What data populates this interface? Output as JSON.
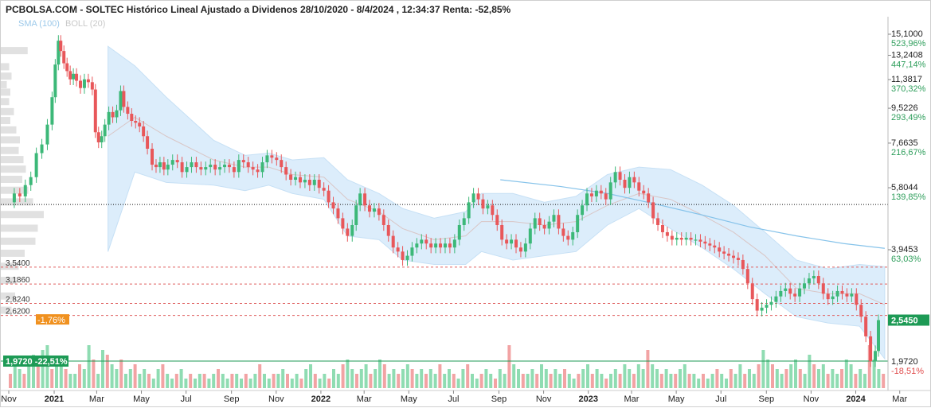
{
  "header": {
    "title": "PCBOLSA.COM - SOLTEC Histórico Lineal Ajustado a Dividenos 28/10/2020 - 8/4/2024 , 12:34:37 Renta: -52,85%",
    "legend_sma": "SMA (100)",
    "legend_boll": "BOLL (20)"
  },
  "colors": {
    "up": "#3cb878",
    "down": "#e8575a",
    "band_fill": "#dcedfb",
    "band_line": "#c6e0f5",
    "sma": "#86c3ea",
    "ma20": "#d9c6c6",
    "vol_up": "#8fdcb2",
    "vol_down": "#f2a3a4",
    "profile": "#d9d9d9",
    "positive_label": "#2e9e5b",
    "negative_label": "#e04b4b",
    "badge_orange": "#f0911f",
    "badge_green": "#1d9a55"
  },
  "chart_data": {
    "type": "candlestick",
    "scale": "log",
    "y_ticks": [
      {
        "price": "15,1000",
        "pct": "523,96%",
        "value": 15.1
      },
      {
        "price": "13,2408",
        "pct": "447,14%",
        "value": 13.2408
      },
      {
        "price": "11,3817",
        "pct": "370,32%",
        "value": 11.3817
      },
      {
        "price": "9,5226",
        "pct": "293,49%",
        "value": 9.5226
      },
      {
        "price": "7,6635",
        "pct": "216,67%",
        "value": 7.6635
      },
      {
        "price": "5,8044",
        "pct": "139,85%",
        "value": 5.8044
      },
      {
        "price": "3,9453",
        "pct": "63,03%",
        "value": 3.9453
      }
    ],
    "x_ticks": [
      {
        "label": "Nov",
        "bold": false,
        "t": 0
      },
      {
        "label": "2021",
        "bold": true,
        "t": 62
      },
      {
        "label": "Mar",
        "bold": false,
        "t": 120
      },
      {
        "label": "May",
        "bold": false,
        "t": 181
      },
      {
        "label": "Jul",
        "bold": false,
        "t": 242
      },
      {
        "label": "Sep",
        "bold": false,
        "t": 304
      },
      {
        "label": "Nov",
        "bold": false,
        "t": 365
      },
      {
        "label": "2022",
        "bold": true,
        "t": 426
      },
      {
        "label": "Mar",
        "bold": false,
        "t": 485
      },
      {
        "label": "May",
        "bold": false,
        "t": 546
      },
      {
        "label": "Jul",
        "bold": false,
        "t": 607
      },
      {
        "label": "Sep",
        "bold": false,
        "t": 669
      },
      {
        "label": "Nov",
        "bold": false,
        "t": 730
      },
      {
        "label": "2023",
        "bold": true,
        "t": 791
      },
      {
        "label": "Mar",
        "bold": false,
        "t": 850
      },
      {
        "label": "May",
        "bold": false,
        "t": 911
      },
      {
        "label": "Jul",
        "bold": false,
        "t": 972
      },
      {
        "label": "Sep",
        "bold": false,
        "t": 1034
      },
      {
        "label": "Nov",
        "bold": false,
        "t": 1095
      },
      {
        "label": "2024",
        "bold": true,
        "t": 1156
      },
      {
        "label": "Mar",
        "bold": false,
        "t": 1216
      }
    ],
    "levels": [
      {
        "label": "3,5400",
        "value": 3.54
      },
      {
        "label": "3,1860",
        "value": 3.186
      },
      {
        "label": "2,8240",
        "value": 2.824
      },
      {
        "label": "2,6200",
        "value": 2.62
      }
    ],
    "left_markers": {
      "orange": "-1,76%",
      "green_price": "1,9720",
      "green_pct": "-22,51%"
    },
    "right_markers": {
      "last": "2,5450",
      "low": "1,9720",
      "low_pct": "-18,51%"
    },
    "reference_price": 5.23,
    "closes": [
      {
        "t": 0,
        "v": 5.3
      },
      {
        "t": 7,
        "v": 5.6
      },
      {
        "t": 14,
        "v": 5.5
      },
      {
        "t": 21,
        "v": 5.9
      },
      {
        "t": 28,
        "v": 6.2
      },
      {
        "t": 35,
        "v": 7.2
      },
      {
        "t": 42,
        "v": 7.6
      },
      {
        "t": 49,
        "v": 8.6
      },
      {
        "t": 55,
        "v": 10.2
      },
      {
        "t": 59,
        "v": 12.5
      },
      {
        "t": 63,
        "v": 14.5
      },
      {
        "t": 66,
        "v": 13.6
      },
      {
        "t": 70,
        "v": 12.6
      },
      {
        "t": 74,
        "v": 12.0
      },
      {
        "t": 78,
        "v": 11.4
      },
      {
        "t": 82,
        "v": 11.8
      },
      {
        "t": 86,
        "v": 11.3
      },
      {
        "t": 91,
        "v": 10.8
      },
      {
        "t": 96,
        "v": 11.4
      },
      {
        "t": 101,
        "v": 11.2
      },
      {
        "t": 106,
        "v": 10.7
      },
      {
        "t": 110,
        "v": 8.2
      },
      {
        "t": 114,
        "v": 7.7
      },
      {
        "t": 118,
        "v": 8.0
      },
      {
        "t": 122,
        "v": 8.6
      },
      {
        "t": 127,
        "v": 9.3
      },
      {
        "t": 132,
        "v": 9.0
      },
      {
        "t": 137,
        "v": 9.4
      },
      {
        "t": 142,
        "v": 10.6
      },
      {
        "t": 146,
        "v": 9.6
      },
      {
        "t": 151,
        "v": 9.2
      },
      {
        "t": 156,
        "v": 8.8
      },
      {
        "t": 161,
        "v": 8.7
      },
      {
        "t": 166,
        "v": 8.5
      },
      {
        "t": 171,
        "v": 8.0
      },
      {
        "t": 176,
        "v": 7.4
      },
      {
        "t": 182,
        "v": 6.7
      },
      {
        "t": 187,
        "v": 6.6
      },
      {
        "t": 192,
        "v": 6.8
      },
      {
        "t": 197,
        "v": 6.5
      },
      {
        "t": 202,
        "v": 6.7
      },
      {
        "t": 208,
        "v": 6.9
      },
      {
        "t": 214,
        "v": 6.8
      },
      {
        "t": 220,
        "v": 6.4
      },
      {
        "t": 226,
        "v": 6.6
      },
      {
        "t": 232,
        "v": 6.8
      },
      {
        "t": 238,
        "v": 6.6
      },
      {
        "t": 244,
        "v": 6.5
      },
      {
        "t": 250,
        "v": 6.6
      },
      {
        "t": 256,
        "v": 6.7
      },
      {
        "t": 262,
        "v": 6.5
      },
      {
        "t": 268,
        "v": 6.6
      },
      {
        "t": 274,
        "v": 6.7
      },
      {
        "t": 280,
        "v": 6.6
      },
      {
        "t": 286,
        "v": 6.4
      },
      {
        "t": 292,
        "v": 6.9
      },
      {
        "t": 298,
        "v": 6.8
      },
      {
        "t": 304,
        "v": 6.6
      },
      {
        "t": 310,
        "v": 6.5
      },
      {
        "t": 316,
        "v": 6.4
      },
      {
        "t": 322,
        "v": 6.8
      },
      {
        "t": 328,
        "v": 7.1
      },
      {
        "t": 334,
        "v": 7.0
      },
      {
        "t": 340,
        "v": 6.9
      },
      {
        "t": 346,
        "v": 6.6
      },
      {
        "t": 352,
        "v": 6.3
      },
      {
        "t": 358,
        "v": 6.1
      },
      {
        "t": 364,
        "v": 6.2
      },
      {
        "t": 370,
        "v": 6.0
      },
      {
        "t": 376,
        "v": 6.1
      },
      {
        "t": 382,
        "v": 5.9
      },
      {
        "t": 388,
        "v": 6.1
      },
      {
        "t": 394,
        "v": 5.8
      },
      {
        "t": 400,
        "v": 5.7
      },
      {
        "t": 406,
        "v": 5.3
      },
      {
        "t": 412,
        "v": 5.1
      },
      {
        "t": 418,
        "v": 4.8
      },
      {
        "t": 424,
        "v": 4.5
      },
      {
        "t": 430,
        "v": 4.3
      },
      {
        "t": 436,
        "v": 4.6
      },
      {
        "t": 441,
        "v": 5.2
      },
      {
        "t": 446,
        "v": 5.6
      },
      {
        "t": 452,
        "v": 5.2
      },
      {
        "t": 458,
        "v": 5.0
      },
      {
        "t": 464,
        "v": 5.1
      },
      {
        "t": 470,
        "v": 4.9
      },
      {
        "t": 476,
        "v": 4.6
      },
      {
        "t": 482,
        "v": 4.3
      },
      {
        "t": 488,
        "v": 4.0
      },
      {
        "t": 494,
        "v": 3.9
      },
      {
        "t": 500,
        "v": 3.7
      },
      {
        "t": 506,
        "v": 3.8
      },
      {
        "t": 512,
        "v": 4.0
      },
      {
        "t": 518,
        "v": 4.1
      },
      {
        "t": 524,
        "v": 4.2
      },
      {
        "t": 530,
        "v": 4.1
      },
      {
        "t": 536,
        "v": 4.0
      },
      {
        "t": 542,
        "v": 4.1
      },
      {
        "t": 548,
        "v": 4.0
      },
      {
        "t": 554,
        "v": 4.1
      },
      {
        "t": 560,
        "v": 4.0
      },
      {
        "t": 566,
        "v": 4.2
      },
      {
        "t": 572,
        "v": 4.6
      },
      {
        "t": 578,
        "v": 4.8
      },
      {
        "t": 584,
        "v": 5.3
      },
      {
        "t": 590,
        "v": 5.6
      },
      {
        "t": 596,
        "v": 5.4
      },
      {
        "t": 602,
        "v": 5.1
      },
      {
        "t": 608,
        "v": 5.2
      },
      {
        "t": 614,
        "v": 4.9
      },
      {
        "t": 620,
        "v": 4.6
      },
      {
        "t": 626,
        "v": 4.2
      },
      {
        "t": 632,
        "v": 4.1
      },
      {
        "t": 638,
        "v": 4.2
      },
      {
        "t": 644,
        "v": 4.0
      },
      {
        "t": 650,
        "v": 3.9
      },
      {
        "t": 656,
        "v": 4.1
      },
      {
        "t": 662,
        "v": 4.5
      },
      {
        "t": 668,
        "v": 4.8
      },
      {
        "t": 674,
        "v": 4.6
      },
      {
        "t": 680,
        "v": 4.5
      },
      {
        "t": 686,
        "v": 4.7
      },
      {
        "t": 692,
        "v": 4.9
      },
      {
        "t": 698,
        "v": 4.5
      },
      {
        "t": 704,
        "v": 4.3
      },
      {
        "t": 710,
        "v": 4.2
      },
      {
        "t": 716,
        "v": 4.4
      },
      {
        "t": 722,
        "v": 4.9
      },
      {
        "t": 728,
        "v": 5.2
      },
      {
        "t": 734,
        "v": 5.6
      },
      {
        "t": 740,
        "v": 5.5
      },
      {
        "t": 746,
        "v": 5.7
      },
      {
        "t": 752,
        "v": 5.6
      },
      {
        "t": 758,
        "v": 5.4
      },
      {
        "t": 764,
        "v": 6.0
      },
      {
        "t": 770,
        "v": 6.4
      },
      {
        "t": 776,
        "v": 6.1
      },
      {
        "t": 782,
        "v": 5.8
      },
      {
        "t": 788,
        "v": 6.2
      },
      {
        "t": 794,
        "v": 6.0
      },
      {
        "t": 800,
        "v": 5.7
      },
      {
        "t": 806,
        "v": 5.6
      },
      {
        "t": 812,
        "v": 5.3
      },
      {
        "t": 818,
        "v": 4.8
      },
      {
        "t": 824,
        "v": 4.6
      },
      {
        "t": 830,
        "v": 4.4
      },
      {
        "t": 836,
        "v": 4.3
      },
      {
        "t": 842,
        "v": 4.2
      },
      {
        "t": 848,
        "v": 4.25
      },
      {
        "t": 854,
        "v": 4.2
      },
      {
        "t": 860,
        "v": 4.25
      },
      {
        "t": 866,
        "v": 4.2
      },
      {
        "t": 872,
        "v": 4.2
      },
      {
        "t": 878,
        "v": 4.15
      },
      {
        "t": 884,
        "v": 4.1
      },
      {
        "t": 890,
        "v": 4.05
      },
      {
        "t": 896,
        "v": 4.0
      },
      {
        "t": 902,
        "v": 3.9
      },
      {
        "t": 908,
        "v": 3.85
      },
      {
        "t": 914,
        "v": 3.8
      },
      {
        "t": 920,
        "v": 3.75
      },
      {
        "t": 926,
        "v": 3.7
      },
      {
        "t": 932,
        "v": 3.5
      },
      {
        "t": 938,
        "v": 3.2
      },
      {
        "t": 944,
        "v": 2.9
      },
      {
        "t": 950,
        "v": 2.7
      },
      {
        "t": 956,
        "v": 2.75
      },
      {
        "t": 962,
        "v": 2.8
      },
      {
        "t": 968,
        "v": 2.85
      },
      {
        "t": 974,
        "v": 2.95
      },
      {
        "t": 980,
        "v": 3.05
      },
      {
        "t": 986,
        "v": 3.1
      },
      {
        "t": 992,
        "v": 3.0
      },
      {
        "t": 998,
        "v": 2.95
      },
      {
        "t": 1004,
        "v": 3.1
      },
      {
        "t": 1010,
        "v": 3.2
      },
      {
        "t": 1016,
        "v": 3.3
      },
      {
        "t": 1022,
        "v": 3.35
      },
      {
        "t": 1028,
        "v": 3.2
      },
      {
        "t": 1034,
        "v": 3.0
      },
      {
        "t": 1040,
        "v": 2.9
      },
      {
        "t": 1046,
        "v": 2.95
      },
      {
        "t": 1052,
        "v": 3.05
      },
      {
        "t": 1058,
        "v": 3.0
      },
      {
        "t": 1064,
        "v": 2.95
      },
      {
        "t": 1070,
        "v": 3.0
      },
      {
        "t": 1076,
        "v": 2.8
      },
      {
        "t": 1082,
        "v": 2.6
      },
      {
        "t": 1088,
        "v": 2.3
      },
      {
        "t": 1094,
        "v": 1.97
      },
      {
        "t": 1100,
        "v": 2.1
      },
      {
        "t": 1104,
        "v": 2.545
      }
    ],
    "sma100": [
      {
        "t": 624,
        "v": 6.1
      },
      {
        "t": 700,
        "v": 5.85
      },
      {
        "t": 760,
        "v": 5.6
      },
      {
        "t": 820,
        "v": 5.25
      },
      {
        "t": 880,
        "v": 4.9
      },
      {
        "t": 940,
        "v": 4.55
      },
      {
        "t": 1000,
        "v": 4.3
      },
      {
        "t": 1060,
        "v": 4.1
      },
      {
        "t": 1112,
        "v": 3.98
      }
    ],
    "bollinger": {
      "t": [
        0,
        60,
        126,
        160,
        200,
        260,
        300,
        330,
        360,
        400,
        430,
        470,
        500,
        540,
        580,
        600,
        640,
        680,
        720,
        760,
        800,
        840,
        880,
        920,
        960,
        1000,
        1040,
        1080,
        1112
      ],
      "upper": [
        0,
        0,
        14.0,
        12.4,
        10.2,
        7.8,
        7.1,
        7.2,
        6.9,
        7.0,
        6.1,
        5.6,
        5.1,
        4.8,
        5.0,
        5.6,
        5.6,
        5.3,
        5.5,
        6.3,
        6.6,
        6.5,
        5.9,
        5.2,
        4.4,
        3.7,
        3.5,
        3.6,
        3.55
      ],
      "lower": [
        0,
        0,
        3.9,
        6.4,
        6.0,
        5.9,
        5.7,
        5.9,
        5.6,
        5.4,
        4.3,
        4.2,
        3.7,
        3.6,
        3.6,
        3.9,
        3.7,
        3.8,
        3.9,
        4.6,
        5.1,
        4.5,
        4.0,
        3.5,
        3.0,
        2.6,
        2.5,
        2.45,
        2.0
      ],
      "middle": [
        0,
        0,
        8.0,
        9.0,
        8.0,
        6.9,
        6.6,
        6.6,
        6.3,
        6.2,
        5.4,
        5.0,
        4.5,
        4.2,
        4.3,
        4.7,
        4.7,
        4.6,
        4.7,
        5.2,
        5.6,
        5.4,
        4.9,
        4.4,
        3.8,
        3.1,
        3.0,
        3.0,
        2.8
      ]
    },
    "volume": [
      0.3,
      0.5,
      0.4,
      0.3,
      0.5,
      0.7,
      0.6,
      0.8,
      0.9,
      0.4,
      0.6,
      0.5,
      0.4,
      0.3,
      0.3,
      0.5,
      0.4,
      0.9,
      0.6,
      0.3,
      0.8,
      0.7,
      0.5,
      0.4,
      0.6,
      0.3,
      0.4,
      0.5,
      0.3,
      0.4,
      0.3,
      0.2,
      0.4,
      0.5,
      0.3,
      0.2,
      0.3,
      0.4,
      0.2,
      0.3,
      0.2,
      0.3,
      0.3,
      0.2,
      0.3,
      0.4,
      0.3,
      0.2,
      0.3,
      0.3,
      0.2,
      0.3,
      0.2,
      0.3,
      0.5,
      0.3,
      0.2,
      0.3,
      0.3,
      0.4,
      0.3,
      0.2,
      0.3,
      0.2,
      0.4,
      0.5,
      0.3,
      0.2,
      0.3,
      0.2,
      0.4,
      0.3,
      0.5,
      0.6,
      0.4,
      0.3,
      0.4,
      0.5,
      0.3,
      0.4,
      0.6,
      0.5,
      0.3,
      0.4,
      0.3,
      0.4,
      0.5,
      0.4,
      0.3,
      0.4,
      0.3,
      0.4,
      0.3,
      0.5,
      0.3,
      0.4,
      0.3,
      0.2,
      0.4,
      0.5,
      0.3,
      0.2,
      0.3,
      0.4,
      0.3,
      0.2,
      0.4,
      0.3,
      0.9,
      0.5,
      0.4,
      0.3,
      0.3,
      0.4,
      0.3,
      0.5,
      0.4,
      0.3,
      0.4,
      0.3,
      0.4,
      0.3,
      0.2,
      0.3,
      0.4,
      0.5,
      0.3,
      0.4,
      0.3,
      0.2,
      0.3,
      0.4,
      0.3,
      0.5,
      0.4,
      0.3,
      0.5,
      0.4,
      0.8,
      0.5,
      0.4,
      0.3,
      0.4,
      0.3,
      0.3,
      0.4,
      0.5,
      0.3,
      0.3,
      0.2,
      0.3,
      0.2,
      0.3,
      0.4,
      0.3,
      0.2,
      0.4,
      0.3,
      0.5,
      0.3,
      0.4,
      0.3,
      0.5,
      0.8,
      0.6,
      0.5,
      0.4,
      0.3,
      0.4,
      0.5,
      0.6,
      0.4,
      0.3,
      0.7,
      0.5,
      0.4,
      0.5,
      0.3,
      0.4,
      0.3,
      0.4,
      0.6,
      0.5,
      0.3,
      0.4,
      0.3,
      0.9,
      0.6,
      0.4,
      0.3
    ],
    "price_profile": [
      {
        "v": 13.6,
        "w": 45
      },
      {
        "v": 12.3,
        "w": 14
      },
      {
        "v": 11.6,
        "w": 18
      },
      {
        "v": 11.0,
        "w": 10
      },
      {
        "v": 10.5,
        "w": 16
      },
      {
        "v": 9.9,
        "w": 14
      },
      {
        "v": 9.3,
        "w": 22
      },
      {
        "v": 8.8,
        "w": 16
      },
      {
        "v": 8.3,
        "w": 26
      },
      {
        "v": 7.8,
        "w": 32
      },
      {
        "v": 7.3,
        "w": 30
      },
      {
        "v": 6.9,
        "w": 38
      },
      {
        "v": 6.5,
        "w": 42
      },
      {
        "v": 6.1,
        "w": 36
      },
      {
        "v": 5.7,
        "w": 46
      },
      {
        "v": 5.3,
        "w": 54
      },
      {
        "v": 4.9,
        "w": 72
      },
      {
        "v": 4.5,
        "w": 62
      },
      {
        "v": 4.15,
        "w": 58
      },
      {
        "v": 3.85,
        "w": 40
      },
      {
        "v": 3.55,
        "w": 30
      },
      {
        "v": 3.25,
        "w": 26
      },
      {
        "v": 2.95,
        "w": 24
      },
      {
        "v": 2.7,
        "w": 18
      }
    ]
  }
}
